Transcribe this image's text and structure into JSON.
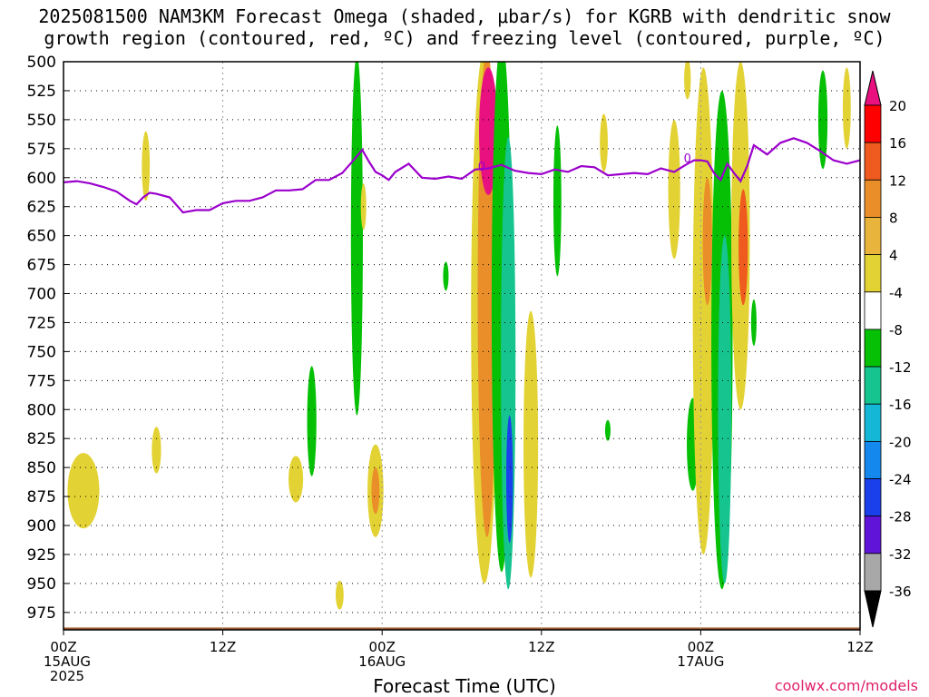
{
  "title_line1": "2025081500 NAM3KM Forecast Omega (shaded, μbar/s) for KGRB with dendritic snow",
  "title_line2": "growth region (contoured, red, ºC) and freezing level (contoured, purple, ºC)",
  "credit": "coolwx.com/models",
  "chart_data": {
    "type": "heatmap",
    "xlabel": "Forecast Time (UTC)",
    "ylabel": "",
    "x_unit": "forecast hour",
    "xlim": [
      0,
      60
    ],
    "ylim_hPa": [
      500,
      990
    ],
    "y_ticks": [
      500,
      525,
      550,
      575,
      600,
      625,
      650,
      675,
      700,
      725,
      750,
      775,
      800,
      825,
      850,
      875,
      900,
      925,
      950,
      975
    ],
    "x_ticks": [
      {
        "hour": 0,
        "lines": [
          "00Z",
          "15AUG",
          "2025"
        ]
      },
      {
        "hour": 12,
        "lines": [
          "12Z"
        ]
      },
      {
        "hour": 24,
        "lines": [
          "00Z",
          "16AUG"
        ]
      },
      {
        "hour": 36,
        "lines": [
          "12Z"
        ]
      },
      {
        "hour": 48,
        "lines": [
          "00Z",
          "17AUG"
        ]
      },
      {
        "hour": 60,
        "lines": [
          "12Z"
        ]
      }
    ],
    "colorbar": {
      "labels": [
        "20",
        "16",
        "12",
        "8",
        "4",
        "-4",
        "-8",
        "-12",
        "-16",
        "-20",
        "-24",
        "-28",
        "-32",
        "-36"
      ],
      "colors": [
        "#ff0000",
        "#ef5a1e",
        "#ea8e2a",
        "#e8b43c",
        "#e3d234",
        "#ffffff",
        "#06c006",
        "#15c48f",
        "#14b8d6",
        "#1588ee",
        "#1a40ec",
        "#6014d8",
        "#9c0acc",
        "#a8a8a8"
      ],
      "top_color": "#e8117f",
      "bottom_color": "#000000"
    },
    "freezing_level": {
      "name": "freezing level (0 ºC)",
      "label": "0",
      "color": "#9b00cc",
      "x": [
        0,
        1,
        2,
        3,
        4,
        5,
        5.5,
        6,
        6.5,
        7,
        8,
        9,
        10,
        11,
        12,
        13,
        14,
        15,
        16,
        17,
        18,
        19,
        20,
        21,
        22,
        22.5,
        23,
        23.5,
        24,
        24.5,
        25,
        26,
        27,
        28,
        29,
        30,
        31,
        32,
        33,
        34,
        35,
        36,
        37,
        38,
        39,
        40,
        41,
        42,
        43,
        44,
        45,
        46,
        47,
        47.5,
        48,
        48.5,
        49,
        49.5,
        50,
        50.5,
        51,
        51.5,
        52,
        53,
        54,
        55,
        56,
        57,
        58,
        59,
        60
      ],
      "y": [
        604,
        603,
        605,
        608,
        612,
        620,
        623,
        617,
        613,
        614,
        617,
        630,
        628,
        628,
        622,
        620,
        620,
        617,
        611,
        611,
        610,
        602,
        602,
        596,
        583,
        576,
        586,
        595,
        598,
        602,
        595,
        588,
        600,
        601,
        599,
        601,
        593,
        592,
        589,
        594,
        596,
        597,
        593,
        595,
        590,
        591,
        598,
        597,
        596,
        597,
        592,
        595,
        588,
        585,
        585,
        586,
        596,
        602,
        588,
        596,
        603,
        590,
        572,
        580,
        570,
        566,
        570,
        577,
        585,
        588,
        585
      ]
    },
    "omega_cells": [
      {
        "x": 1.5,
        "p": 870,
        "w": 1.2,
        "h": 65,
        "v": 5
      },
      {
        "x": 6.2,
        "p": 590,
        "w": 0.3,
        "h": 60,
        "v": 5
      },
      {
        "x": 7.0,
        "p": 835,
        "w": 0.35,
        "h": 40,
        "v": 5
      },
      {
        "x": 17.5,
        "p": 860,
        "w": 0.55,
        "h": 40,
        "v": 5
      },
      {
        "x": 18.7,
        "p": 810,
        "w": 0.35,
        "h": 95,
        "v": -6
      },
      {
        "x": 20.8,
        "p": 960,
        "w": 0.3,
        "h": 25,
        "v": 5
      },
      {
        "x": 22.1,
        "p": 650,
        "w": 0.45,
        "h": 310,
        "v": -6
      },
      {
        "x": 22.6,
        "p": 625,
        "w": 0.18,
        "h": 40,
        "v": 5
      },
      {
        "x": 23.5,
        "p": 870,
        "w": 0.6,
        "h": 80,
        "v": 6
      },
      {
        "x": 23.5,
        "p": 870,
        "w": 0.3,
        "h": 40,
        "v": 9
      },
      {
        "x": 28.8,
        "p": 685,
        "w": 0.2,
        "h": 25,
        "v": -6
      },
      {
        "x": 31.7,
        "p": 720,
        "w": 1.0,
        "h": 460,
        "v": 5
      },
      {
        "x": 31.9,
        "p": 700,
        "w": 0.7,
        "h": 420,
        "v": 10
      },
      {
        "x": 32.0,
        "p": 560,
        "w": 0.7,
        "h": 110,
        "v": 22
      },
      {
        "x": 33.0,
        "p": 710,
        "w": 0.75,
        "h": 460,
        "v": -7
      },
      {
        "x": 33.5,
        "p": 760,
        "w": 0.55,
        "h": 390,
        "v": -15
      },
      {
        "x": 33.6,
        "p": 860,
        "w": 0.25,
        "h": 110,
        "v": -25
      },
      {
        "x": 35.2,
        "p": 830,
        "w": 0.55,
        "h": 230,
        "v": 5
      },
      {
        "x": 37.2,
        "p": 620,
        "w": 0.3,
        "h": 130,
        "v": -6
      },
      {
        "x": 40.7,
        "p": 570,
        "w": 0.3,
        "h": 50,
        "v": 5
      },
      {
        "x": 41.0,
        "p": 818,
        "w": 0.12,
        "h": 18,
        "v": -6
      },
      {
        "x": 46.0,
        "p": 610,
        "w": 0.45,
        "h": 120,
        "v": 5
      },
      {
        "x": 47.0,
        "p": 515,
        "w": 0.25,
        "h": 35,
        "v": 5
      },
      {
        "x": 47.4,
        "p": 830,
        "w": 0.45,
        "h": 80,
        "v": -7
      },
      {
        "x": 48.2,
        "p": 715,
        "w": 0.8,
        "h": 420,
        "v": 5
      },
      {
        "x": 48.5,
        "p": 655,
        "w": 0.35,
        "h": 110,
        "v": 10
      },
      {
        "x": 49.6,
        "p": 740,
        "w": 0.8,
        "h": 430,
        "v": -6
      },
      {
        "x": 49.8,
        "p": 800,
        "w": 0.5,
        "h": 300,
        "v": -13
      },
      {
        "x": 51.0,
        "p": 650,
        "w": 0.7,
        "h": 300,
        "v": 6
      },
      {
        "x": 51.2,
        "p": 660,
        "w": 0.35,
        "h": 100,
        "v": 14
      },
      {
        "x": 52.0,
        "p": 725,
        "w": 0.2,
        "h": 40,
        "v": -6
      },
      {
        "x": 57.2,
        "p": 550,
        "w": 0.35,
        "h": 85,
        "v": -6
      },
      {
        "x": 59.0,
        "p": 540,
        "w": 0.3,
        "h": 70,
        "v": 5
      }
    ],
    "terrain": {
      "color": "#9e5a2d",
      "note": "surface pressure near 990 hPa"
    }
  }
}
